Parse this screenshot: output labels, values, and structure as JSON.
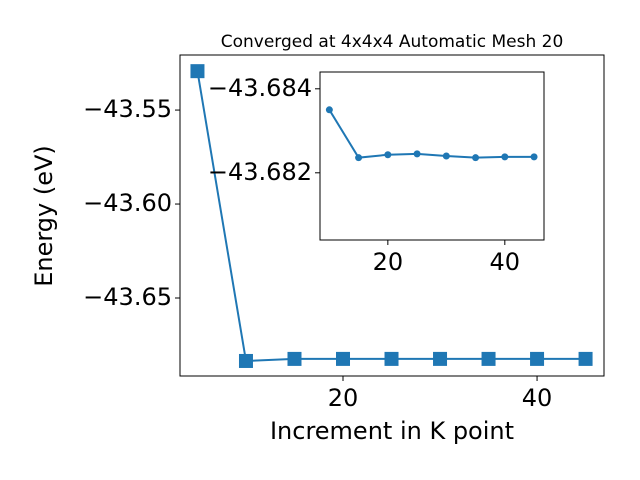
{
  "chart_data": [
    {
      "type": "line",
      "title": "Converged at 4x4x4 Automatic Mesh 20",
      "x_label": "Increment in K point",
      "y_label": "Energy (eV)",
      "x": [
        5,
        10,
        15,
        20,
        25,
        30,
        35,
        40,
        45
      ],
      "series": [
        {
          "color": "#1f77b4",
          "marker": "square",
          "values": [
            -43.5293,
            -43.6835,
            -43.6824,
            -43.6824,
            -43.6824,
            -43.6824,
            -43.6824,
            -43.6824,
            -43.6824
          ]
        }
      ],
      "xlim": [
        3.2,
        46.9
      ],
      "ylim": [
        -43.6915,
        -43.5207
      ],
      "xticks": [
        20,
        40
      ],
      "yticks": [
        {
          "value": -43.65,
          "label": "−43.65"
        },
        {
          "value": -43.6,
          "label": "−43.60"
        },
        {
          "value": -43.55,
          "label": "−43.55"
        }
      ]
    },
    {
      "type": "line",
      "x": [
        10,
        15,
        20,
        25,
        30,
        35,
        40,
        45
      ],
      "series": [
        {
          "color": "#1f77b4",
          "marker": "circle",
          "values": [
            -43.6835,
            -43.68236,
            -43.68243,
            -43.68245,
            -43.6824,
            -43.68236,
            -43.68238,
            -43.68238
          ]
        }
      ],
      "xlim": [
        8.4,
        46.7
      ],
      "ylim": [
        -43.6804,
        -43.6844
      ],
      "xticks": [
        20,
        40
      ],
      "yticks": [
        {
          "value": -43.682,
          "label": "−43.682"
        },
        {
          "value": -43.684,
          "label": "−43.684"
        }
      ]
    }
  ]
}
